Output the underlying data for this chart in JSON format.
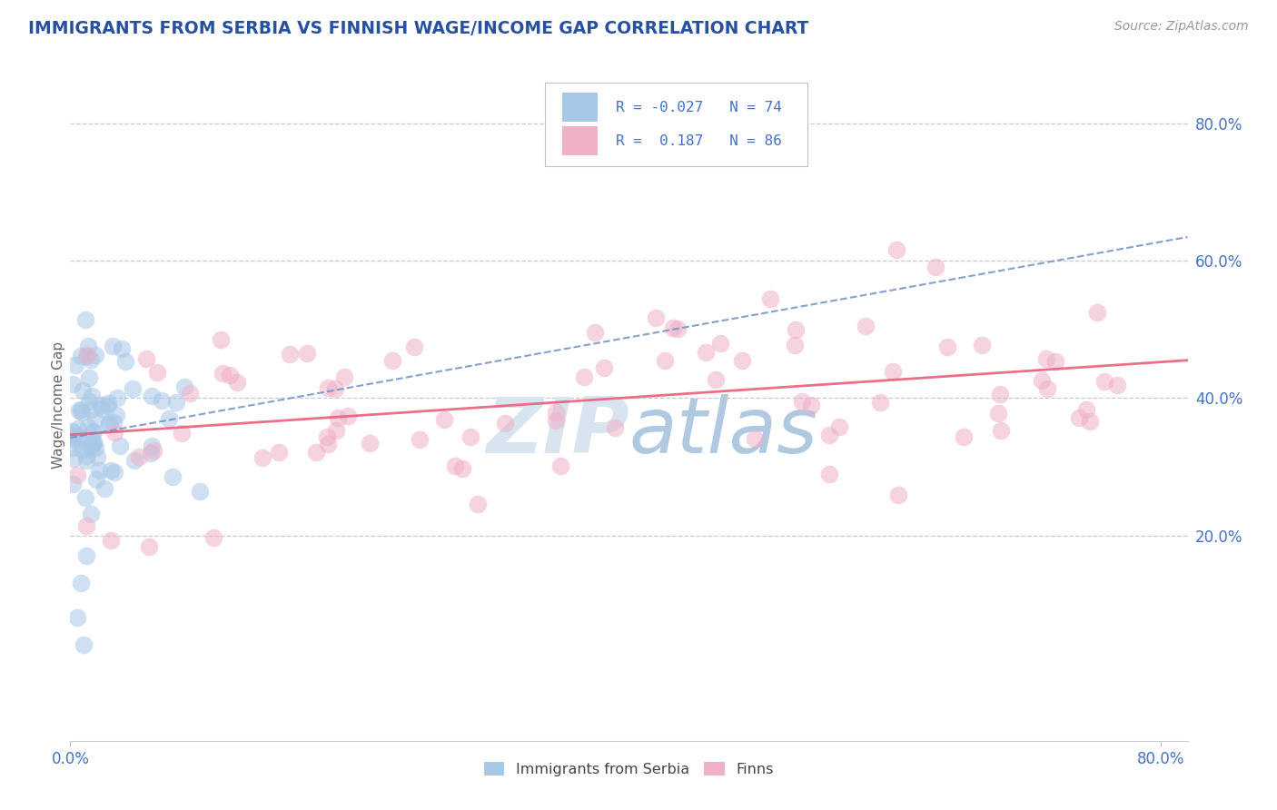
{
  "title": "IMMIGRANTS FROM SERBIA VS FINNISH WAGE/INCOME GAP CORRELATION CHART",
  "source": "Source: ZipAtlas.com",
  "ylabel": "Wage/Income Gap",
  "xlim": [
    0.0,
    0.82
  ],
  "ylim": [
    -0.1,
    0.88
  ],
  "y_ticks_right": [
    0.2,
    0.4,
    0.6,
    0.8
  ],
  "blue_R": -0.027,
  "blue_N": 74,
  "pink_R": 0.187,
  "pink_N": 86,
  "blue_color": "#a8c8e8",
  "pink_color": "#f0b0c8",
  "blue_line_color": "#7090c8",
  "pink_line_color": "#e8607a",
  "background_color": "#ffffff",
  "grid_color": "#c8c8d8",
  "title_color": "#2850a0",
  "axis_tick_color": "#4472c4",
  "watermark_color": "#d8e4f0",
  "legend_blue_text": "R = -0.027   N = 74",
  "legend_pink_text": "R =  0.187   N = 86"
}
